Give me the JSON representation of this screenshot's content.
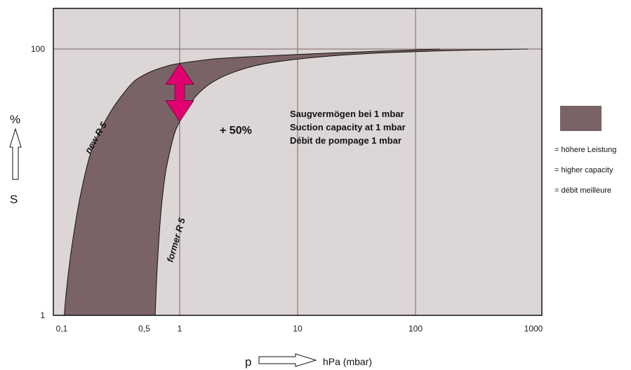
{
  "chart_data": {
    "type": "area",
    "xscale": "log",
    "yscale": "log",
    "xlim": [
      0.1,
      1000
    ],
    "ylim": [
      1,
      100
    ],
    "x_ticks": [
      {
        "value": 0.1,
        "label": "0,1"
      },
      {
        "value": 0.5,
        "label": "0,5"
      },
      {
        "value": 1,
        "label": "1"
      },
      {
        "value": 10,
        "label": "10"
      },
      {
        "value": 100,
        "label": "100"
      },
      {
        "value": 1000,
        "label": "1000"
      }
    ],
    "y_ticks": [
      {
        "value": 1,
        "label": "1"
      },
      {
        "value": 100,
        "label": "100"
      }
    ],
    "x_gridlines": [
      1,
      10,
      100
    ],
    "y_gridlines": [
      100
    ],
    "series": [
      {
        "name": "new R 5",
        "x": [
          0.105,
          0.11,
          0.12,
          0.14,
          0.17,
          0.2,
          0.25,
          0.3,
          0.4,
          0.5,
          0.6,
          0.8,
          1,
          1.5,
          2,
          3,
          5,
          10,
          20,
          50,
          100,
          160
        ],
        "y": [
          1,
          1.6,
          3,
          7,
          15,
          22,
          32,
          41,
          56,
          64,
          69,
          75,
          78,
          82,
          84.5,
          86.5,
          88.5,
          91,
          93.5,
          96.5,
          98.5,
          100
        ]
      },
      {
        "name": "former R 5",
        "x": [
          0.62,
          0.64,
          0.67,
          0.7,
          0.75,
          0.8,
          0.9,
          1,
          1.2,
          1.5,
          2,
          3,
          5,
          10,
          20,
          50,
          100,
          200,
          500,
          900
        ],
        "y": [
          1,
          2,
          4,
          6.5,
          11,
          15,
          23,
          28.5,
          38,
          48,
          58,
          68,
          77,
          84,
          89,
          93.5,
          95.5,
          97.5,
          99.2,
          100
        ]
      }
    ],
    "gain_arrow": {
      "x": 1,
      "y_from": 28.5,
      "y_to": 78,
      "label": "+ 50%"
    },
    "annotation": [
      "Saugvermögen bei 1 mbar",
      "Suction capacity at 1 mbar",
      "Débit de pompage 1 mbar"
    ],
    "y_axis": {
      "unit": "%",
      "symbol": "S"
    },
    "x_axis": {
      "symbol": "p",
      "unit": "hPa (mbar)"
    },
    "legend": {
      "placement": "right",
      "items": [
        "= höhere Leistung",
        "= higher capacity",
        "= débit meilleure"
      ]
    },
    "colors": {
      "background": "#dcd6d6",
      "band": "#7a6366",
      "grid": "#7a6366",
      "arrow": "#e0006f"
    },
    "grid": true
  }
}
